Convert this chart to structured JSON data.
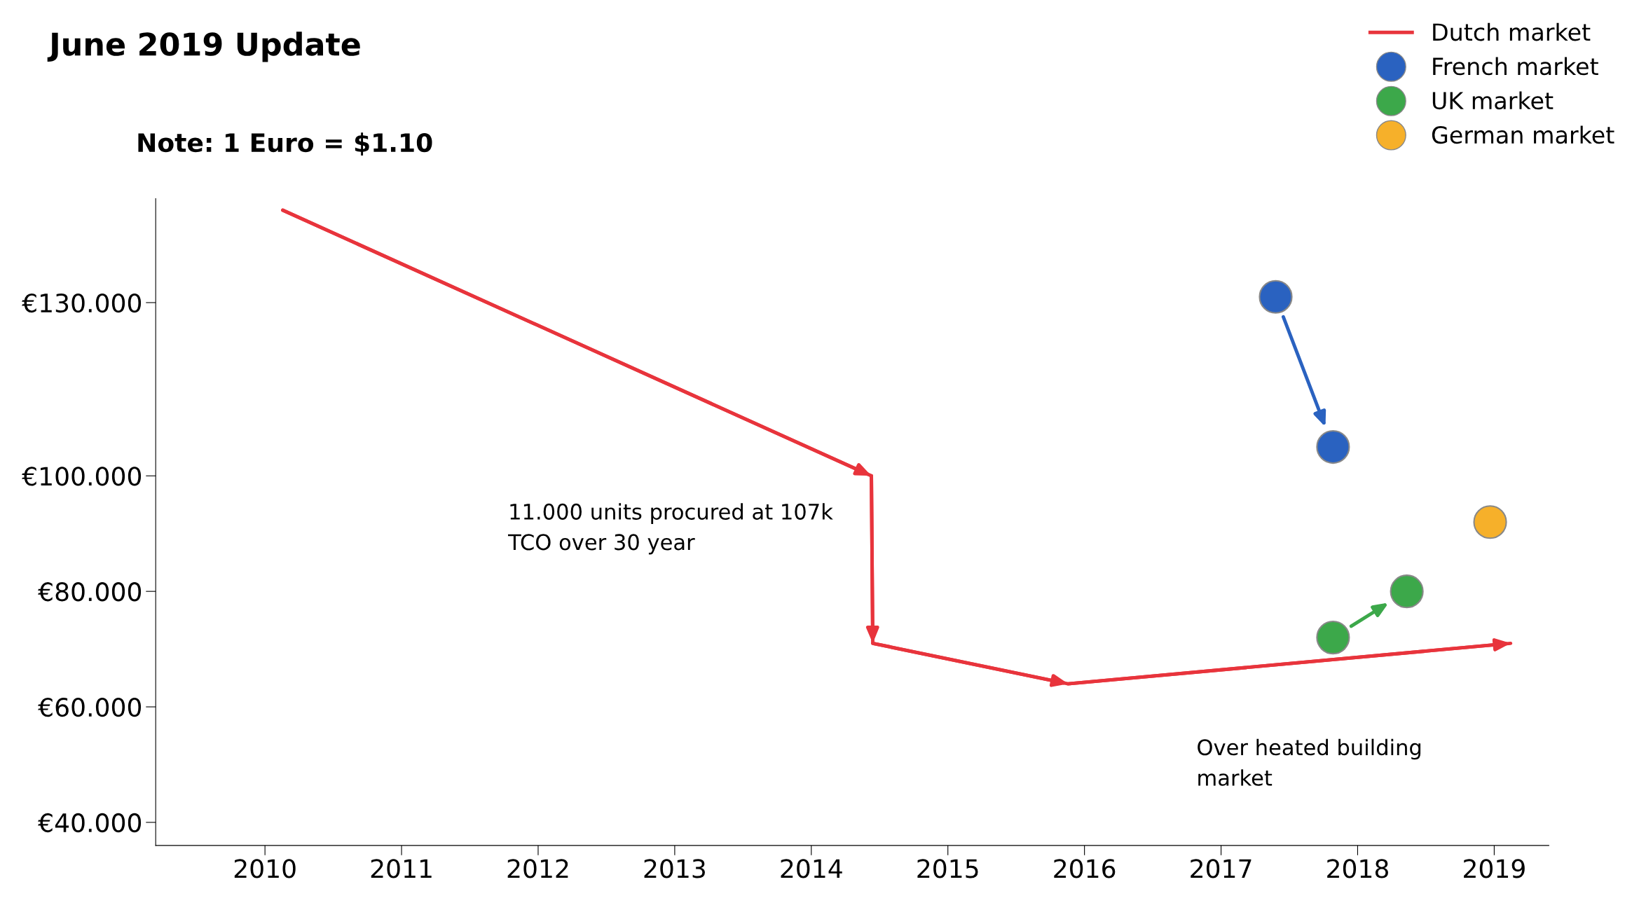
{
  "chart_data": {
    "type": "line",
    "title": "June 2019 Update",
    "legend": "top right",
    "grid": false,
    "line_style": "solid",
    "xlim": [
      2009.2,
      2019.4
    ],
    "xticks": [
      2010,
      2011,
      2012,
      2013,
      2014,
      2015,
      2016,
      2017,
      2018,
      2019
    ],
    "ylim": [
      36,
      148
    ],
    "yticks": [
      {
        "value": 40,
        "label": "€40.000"
      },
      {
        "value": 60,
        "label": "€60.000"
      },
      {
        "value": 80,
        "label": "€80.000"
      },
      {
        "value": 100,
        "label": "€100.000"
      },
      {
        "value": 130,
        "label": "€130.000"
      }
    ],
    "series": [
      {
        "name": "Dutch market",
        "color": "#e8343c",
        "marker": "none",
        "x": [
          2010.13,
          2014.44,
          2014.45,
          2015.88,
          2019.12
        ],
        "values": [
          146,
          100,
          71,
          64,
          71
        ]
      },
      {
        "name": "French market",
        "color": "#2a62c0",
        "type": "scatter",
        "marker": "circle",
        "x": [
          2017.4,
          2017.82
        ],
        "values": [
          131,
          105
        ]
      },
      {
        "name": "UK market",
        "color": "#3ca84a",
        "type": "scatter",
        "marker": "circle",
        "x": [
          2017.82,
          2018.36
        ],
        "values": [
          72,
          80
        ]
      },
      {
        "name": "German market",
        "color": "#f6b02a",
        "type": "scatter",
        "marker": "circle",
        "x": [
          2018.97
        ],
        "values": [
          92
        ]
      }
    ],
    "annotations": [
      "Note: 1 Euro = $1.10",
      "11.000 units procured at 107k\nTCO over 30 year",
      "Over heated building\nmarket"
    ]
  }
}
